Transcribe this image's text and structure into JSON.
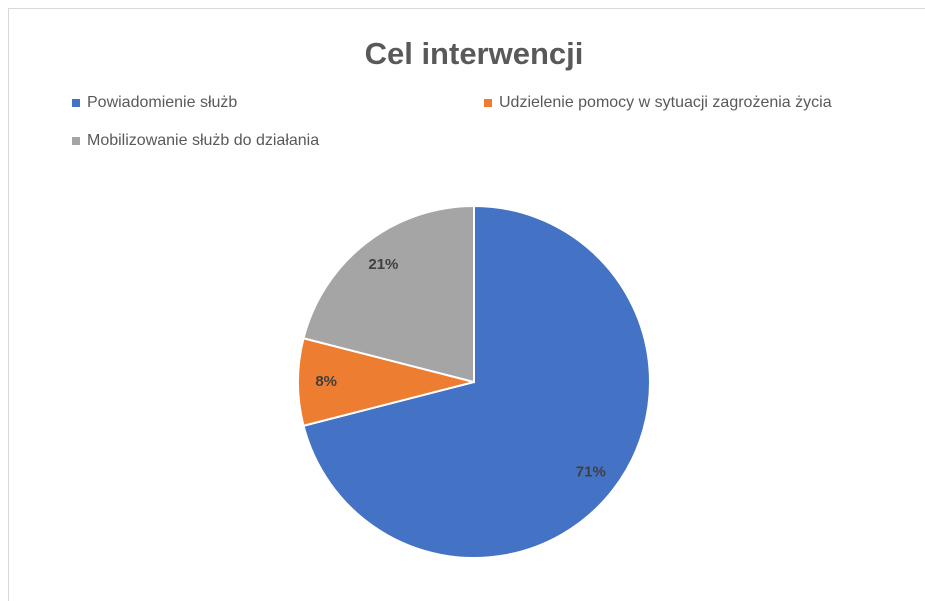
{
  "chart_data": {
    "type": "pie",
    "title": "Cel interwencji",
    "categories": [
      "Powiadomienie służb",
      "Udzielenie pomocy w sytuacji zagrożenia życia",
      "Mobilizowanie służb do działania"
    ],
    "values": [
      71,
      8,
      21
    ],
    "value_labels": [
      "71%",
      "8%",
      "21%"
    ],
    "colors": [
      "#4472c4",
      "#ed7d31",
      "#a5a5a5"
    ],
    "legend": "top"
  }
}
